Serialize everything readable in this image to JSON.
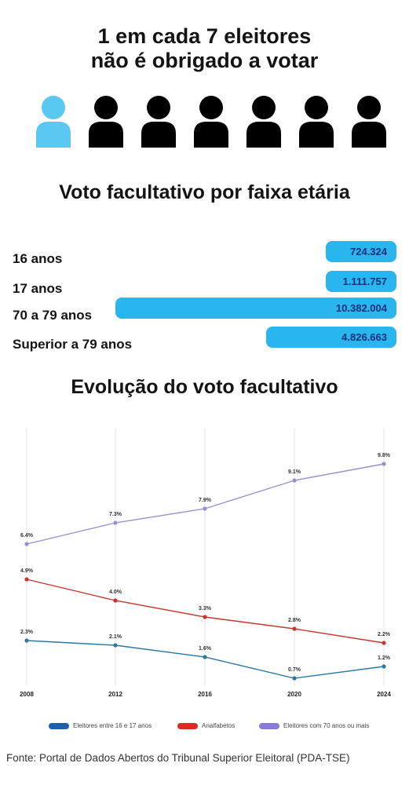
{
  "headline": {
    "line1": "1 em cada 7 eleitores",
    "line2": "não é obrigado a votar"
  },
  "icons": {
    "people": [
      "person-icon",
      "person-icon",
      "person-icon",
      "person-icon",
      "person-icon",
      "person-icon",
      "person-icon"
    ],
    "highlight_color": "#5bc8f2",
    "default_color": "#000000",
    "highlighted_count": 1,
    "total_count": 7
  },
  "section_titles": {
    "age_groups": "Voto facultativo por faixa etária",
    "evolution": "Evolução do voto facultativo"
  },
  "bar_color": "#29b5ee",
  "bar_text_color": "#17317a",
  "chart_data": [
    {
      "type": "bar",
      "orientation": "horizontal",
      "title": "Voto facultativo por faixa etária",
      "categories": [
        "16 anos",
        "17 anos",
        "70 a 79 anos",
        "Superior a 79 anos"
      ],
      "values": [
        724324,
        1111757,
        10382004,
        4826663
      ],
      "value_labels": [
        "724.324",
        "1.111.757",
        "10.382.004",
        "4.826.663"
      ]
    },
    {
      "type": "line",
      "title": "Evolução do voto facultativo",
      "x": [
        "2008",
        "2012",
        "2016",
        "2020",
        "2024"
      ],
      "ylim": [
        0,
        10
      ],
      "grid": "vertical",
      "legend_position": "bottom",
      "series": [
        {
          "name": "Eleitores entre 16 e 17 anos",
          "color": "#2a78a6",
          "values": [
            2.3,
            2.1,
            1.6,
            0.7,
            1.2
          ],
          "labels": [
            "2.3%",
            "2.1%",
            "1.6%",
            "0.7%",
            "1.2%"
          ]
        },
        {
          "name": "Analfabetos",
          "color": "#c8372b",
          "values": [
            4.9,
            4.0,
            3.3,
            2.8,
            2.2
          ],
          "labels": [
            "4.9%",
            "4.0%",
            "3.3%",
            "2.8%",
            "2.2%"
          ]
        },
        {
          "name": "Eleitores com 70 anos ou mais",
          "color": "#9a8fd6",
          "values": [
            6.4,
            7.3,
            7.9,
            9.1,
            9.8
          ],
          "labels": [
            "6.4%",
            "7.3%",
            "7.9%",
            "9.1%",
            "9.8%"
          ]
        }
      ],
      "legend_colors": [
        "#1f5fb0",
        "#d92d20",
        "#8a7bd8"
      ]
    }
  ],
  "source": "Fonte: Portal de Dados Abertos do Tribunal Superior Eleitoral (PDA-TSE)"
}
